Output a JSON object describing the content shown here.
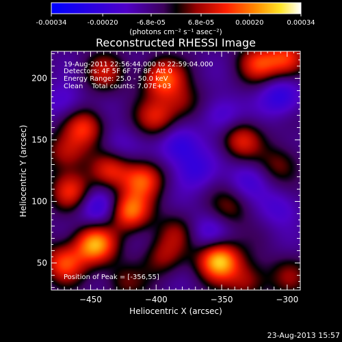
{
  "chart_data": {
    "type": "heatmap",
    "title": "Reconstructed RHESSI Image",
    "xlabel": "Heliocentric X (arcsec)",
    "ylabel": "Heliocentric Y (arcsec)",
    "xlim": [
      -480,
      -290
    ],
    "ylim": [
      28,
      222
    ],
    "x_ticks": [
      -450,
      -400,
      -350,
      -300
    ],
    "y_ticks": [
      50,
      100,
      150,
      200
    ],
    "colorbar": {
      "label": "(photons cm⁻² s⁻¹ asec⁻²)",
      "range": [
        -0.00034,
        0.00034
      ],
      "tick_labels": [
        "-0.00034",
        "-0.00020",
        "-6.8e-05",
        "6.8e-05",
        "0.00020",
        "0.00034"
      ],
      "tick_values": [
        -0.00034,
        -0.0002,
        -6.8e-05,
        6.8e-05,
        0.0002,
        0.00034
      ]
    },
    "annotations": [
      "19-Aug-2011 22:56:44.000 to 22:59:04.000",
      "Detectors: 4F 5F 6F 7F 8F, Att 0",
      "Energy Range: 25.0 - 50.0 keV",
      "Clean    Total counts: 7.07E+03"
    ],
    "peak_label": "Position of Peak = [-356,55]",
    "peak_position": [
      -356,
      55
    ],
    "sources": [
      {
        "x": -352,
        "y": 52,
        "value": 0.00034
      },
      {
        "x": -447,
        "y": 65,
        "value": 0.0003
      },
      {
        "x": -470,
        "y": 50,
        "value": 0.00022
      },
      {
        "x": -420,
        "y": 92,
        "value": 0.00026
      },
      {
        "x": -410,
        "y": 118,
        "value": 0.00022
      },
      {
        "x": -435,
        "y": 125,
        "value": 0.00018
      },
      {
        "x": -465,
        "y": 108,
        "value": 0.00018
      },
      {
        "x": -468,
        "y": 140,
        "value": 0.00016
      },
      {
        "x": -455,
        "y": 160,
        "value": 0.0002
      },
      {
        "x": -440,
        "y": 205,
        "value": 0.00014
      },
      {
        "x": -395,
        "y": 200,
        "value": 0.00024
      },
      {
        "x": -400,
        "y": 168,
        "value": 0.00016
      },
      {
        "x": -380,
        "y": 180,
        "value": 0.00012
      },
      {
        "x": -335,
        "y": 150,
        "value": 0.00018
      },
      {
        "x": -322,
        "y": 212,
        "value": 0.00018
      },
      {
        "x": -300,
        "y": 215,
        "value": 0.00022
      },
      {
        "x": -305,
        "y": 130,
        "value": 0.00012
      },
      {
        "x": -343,
        "y": 95,
        "value": 0.0001
      },
      {
        "x": -330,
        "y": 35,
        "value": 0.00014
      },
      {
        "x": -395,
        "y": 55,
        "value": 0.00012
      },
      {
        "x": -385,
        "y": 75,
        "value": 0.0001
      },
      {
        "x": -298,
        "y": 40,
        "value": 0.0001
      },
      {
        "x": -425,
        "y": 35,
        "value": 0.0001
      },
      {
        "x": -370,
        "y": 125,
        "value": -0.00012
      },
      {
        "x": -382,
        "y": 145,
        "value": -0.00016
      },
      {
        "x": -305,
        "y": 185,
        "value": -0.00016
      },
      {
        "x": -350,
        "y": 170,
        "value": -0.00012
      },
      {
        "x": -445,
        "y": 95,
        "value": -0.00014
      },
      {
        "x": -360,
        "y": 75,
        "value": -0.0001
      },
      {
        "x": -330,
        "y": 118,
        "value": -0.0001
      },
      {
        "x": -470,
        "y": 180,
        "value": -0.0001
      },
      {
        "x": -305,
        "y": 95,
        "value": -0.0001
      },
      {
        "x": -430,
        "y": 145,
        "value": -8e-05
      }
    ]
  },
  "footer": {
    "timestamp": "23-Aug-2013 15:57"
  }
}
